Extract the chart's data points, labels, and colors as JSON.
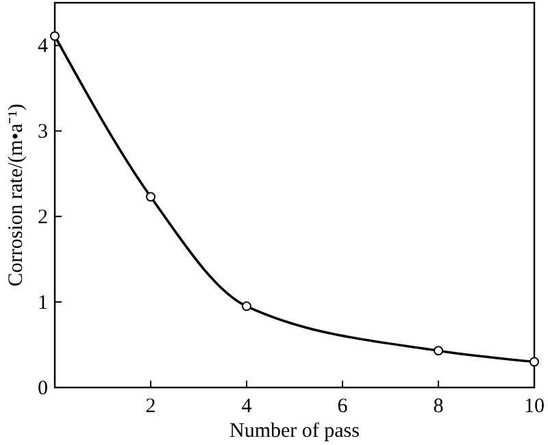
{
  "chart_data": {
    "type": "line",
    "xlabel": "Number of pass",
    "ylabel": "Corrosion rate/(m•a⁻¹)",
    "x": [
      0,
      2,
      4,
      8,
      10
    ],
    "series": [
      {
        "color": "#000000",
        "values": [
          4.11,
          2.23,
          0.95,
          0.43,
          0.3
        ]
      }
    ],
    "xlim": [
      0,
      10
    ],
    "xticks": [
      {
        "value": 0,
        "label": null
      },
      2,
      4,
      6,
      8,
      10
    ],
    "ylim": [
      0,
      4.5
    ],
    "yticks": [
      0,
      1,
      2,
      3,
      4
    ],
    "marker": "circle",
    "line_style": "solid",
    "grid": false
  }
}
